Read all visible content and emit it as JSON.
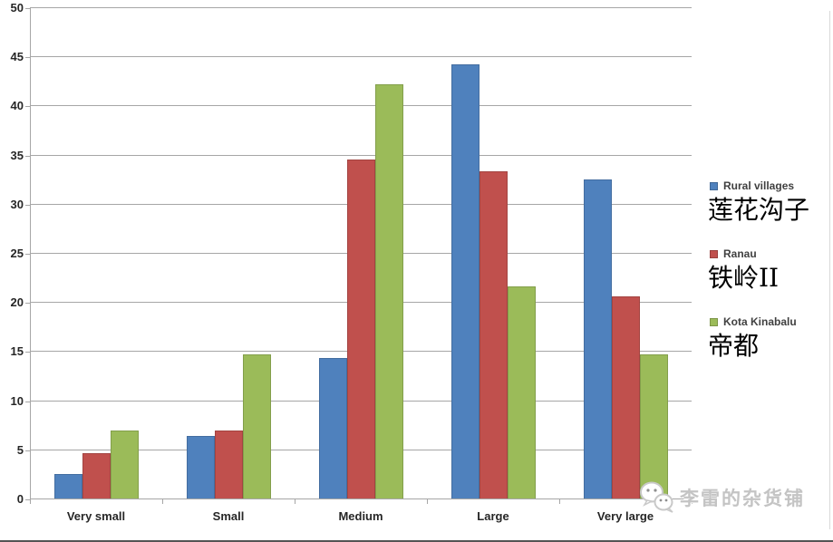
{
  "chart_data": {
    "type": "bar",
    "title": "",
    "categories": [
      "Very small",
      "Small",
      "Medium",
      "Large",
      "Very large"
    ],
    "series": [
      {
        "name": "Rural villages",
        "color": "#4F81BD",
        "annotation": "莲花沟子",
        "values": [
          2.5,
          6.4,
          14.3,
          44.2,
          32.5
        ]
      },
      {
        "name": "Ranau",
        "color": "#C0504D",
        "annotation": "铁岭II",
        "values": [
          4.6,
          6.9,
          34.5,
          33.3,
          20.6
        ]
      },
      {
        "name": "Kota Kinabalu",
        "color": "#9BBB59",
        "annotation": "帝都",
        "values": [
          6.9,
          14.7,
          42.2,
          21.6,
          14.7
        ]
      }
    ],
    "xlabel": "",
    "ylabel": "",
    "ylim": [
      0,
      50
    ],
    "ytick_step": 5,
    "grid": true,
    "legend_position": "right"
  },
  "watermark": {
    "text": "李雷的杂货铺",
    "icon": "wechat-icon"
  },
  "colors": {
    "gridline": "#a6a6a6",
    "axis_text": "#262626",
    "legend_text": "#404040",
    "watermark_text": "#c4c4c4"
  }
}
